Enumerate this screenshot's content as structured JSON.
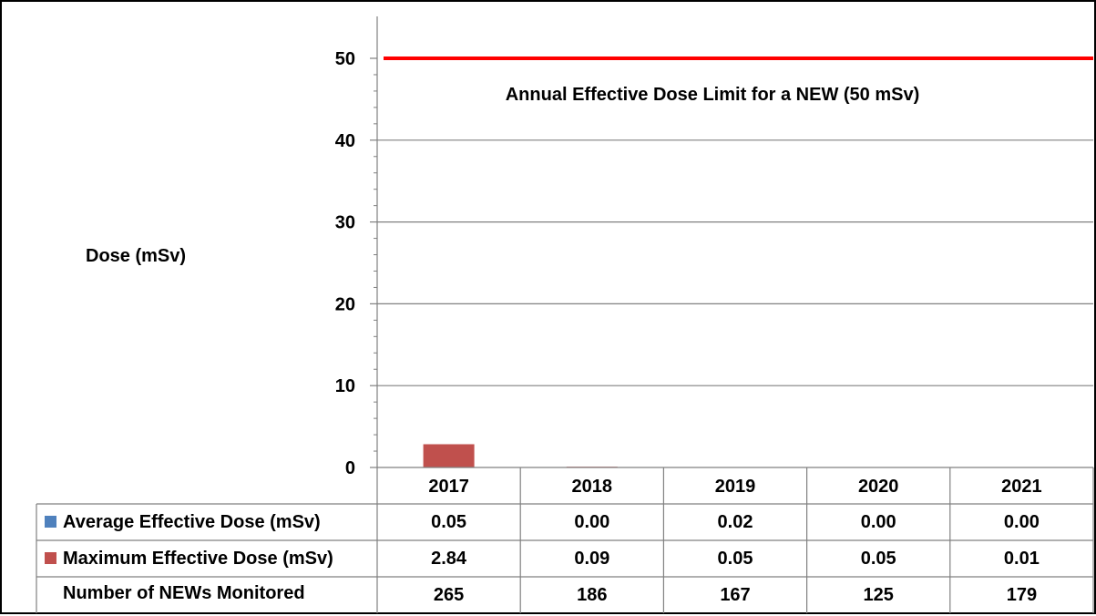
{
  "chart_data": {
    "type": "bar",
    "title": "",
    "ylabel": "Dose (mSv)",
    "ylim": [
      0,
      50
    ],
    "yticks": [
      0,
      10,
      20,
      30,
      40,
      50
    ],
    "grid": true,
    "categories": [
      "2017",
      "2018",
      "2019",
      "2020",
      "2021"
    ],
    "series": [
      {
        "name": "Average Effective Dose (mSv)",
        "color": "#4f81bd",
        "values": [
          0.05,
          0.0,
          0.02,
          0.0,
          0.0
        ],
        "labels": [
          "0.05",
          "0.00",
          "0.02",
          "0.00",
          "0.00"
        ]
      },
      {
        "name": "Maximum Effective Dose (mSv)",
        "color": "#c0504d",
        "values": [
          2.84,
          0.09,
          0.05,
          0.05,
          0.01
        ],
        "labels": [
          "2.84",
          "0.09",
          "0.05",
          "0.05",
          "0.01"
        ]
      }
    ],
    "table_rows": [
      {
        "label": "Number of NEWs Monitored",
        "values": [
          "265",
          "186",
          "167",
          "125",
          "179"
        ]
      }
    ],
    "reference_line": {
      "value": 50,
      "color": "#ff0000",
      "label": "Annual Effective Dose Limit for a NEW (50 mSv)"
    }
  }
}
